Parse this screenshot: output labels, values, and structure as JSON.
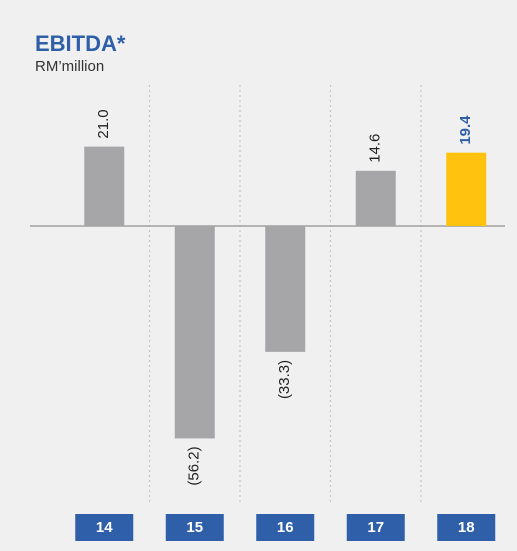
{
  "chart_data": {
    "type": "bar",
    "title": "EBITDA*",
    "subtitle": "RM’million",
    "categories": [
      "14",
      "15",
      "16",
      "17",
      "18"
    ],
    "values": [
      21.0,
      -56.2,
      -33.3,
      14.6,
      19.4
    ],
    "value_labels": [
      "21.0",
      "(56.2)",
      "(33.3)",
      "14.6",
      "19.4"
    ],
    "colors": [
      "#a6a6a8",
      "#a6a6a8",
      "#a6a6a8",
      "#a6a6a8",
      "#ffc20e"
    ],
    "value_label_colors": [
      "#222222",
      "#222222",
      "#222222",
      "#222222",
      "#2e5fa8"
    ],
    "category_box_color": "#2e5fa8"
  }
}
